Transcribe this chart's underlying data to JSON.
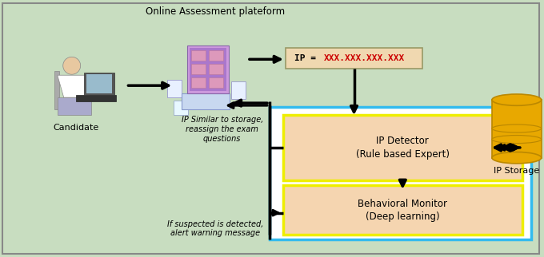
{
  "bg_color": "#c8ddc0",
  "title_text": "Online Assessment plateform",
  "candidate_label": "Candidate",
  "ip_storage_label": "IP Storage",
  "ip_detector_line1": "IP Detector",
  "ip_detector_line2": "(Rule based Expert)",
  "behavioral_line1": "Behavioral Monitor",
  "behavioral_line2": "(Deep learning)",
  "feedback1_text": "IP Similar to storage,\nreassign the exam\nquestions",
  "feedback2_text": "If suspected is detected,\nalert warning message",
  "outer_box_color": "#33bbee",
  "inner_box_fill": "#f5d5b0",
  "inner_box_edge": "#eeee00",
  "ip_box_fill": "#f0d8b0",
  "ip_box_edge": "#999966",
  "arrow_color": "#000000",
  "font_size_title": 8.5,
  "font_size_label": 8,
  "font_size_box": 8,
  "font_size_ip": 8,
  "font_size_feedback": 7,
  "border_color": "#888888"
}
